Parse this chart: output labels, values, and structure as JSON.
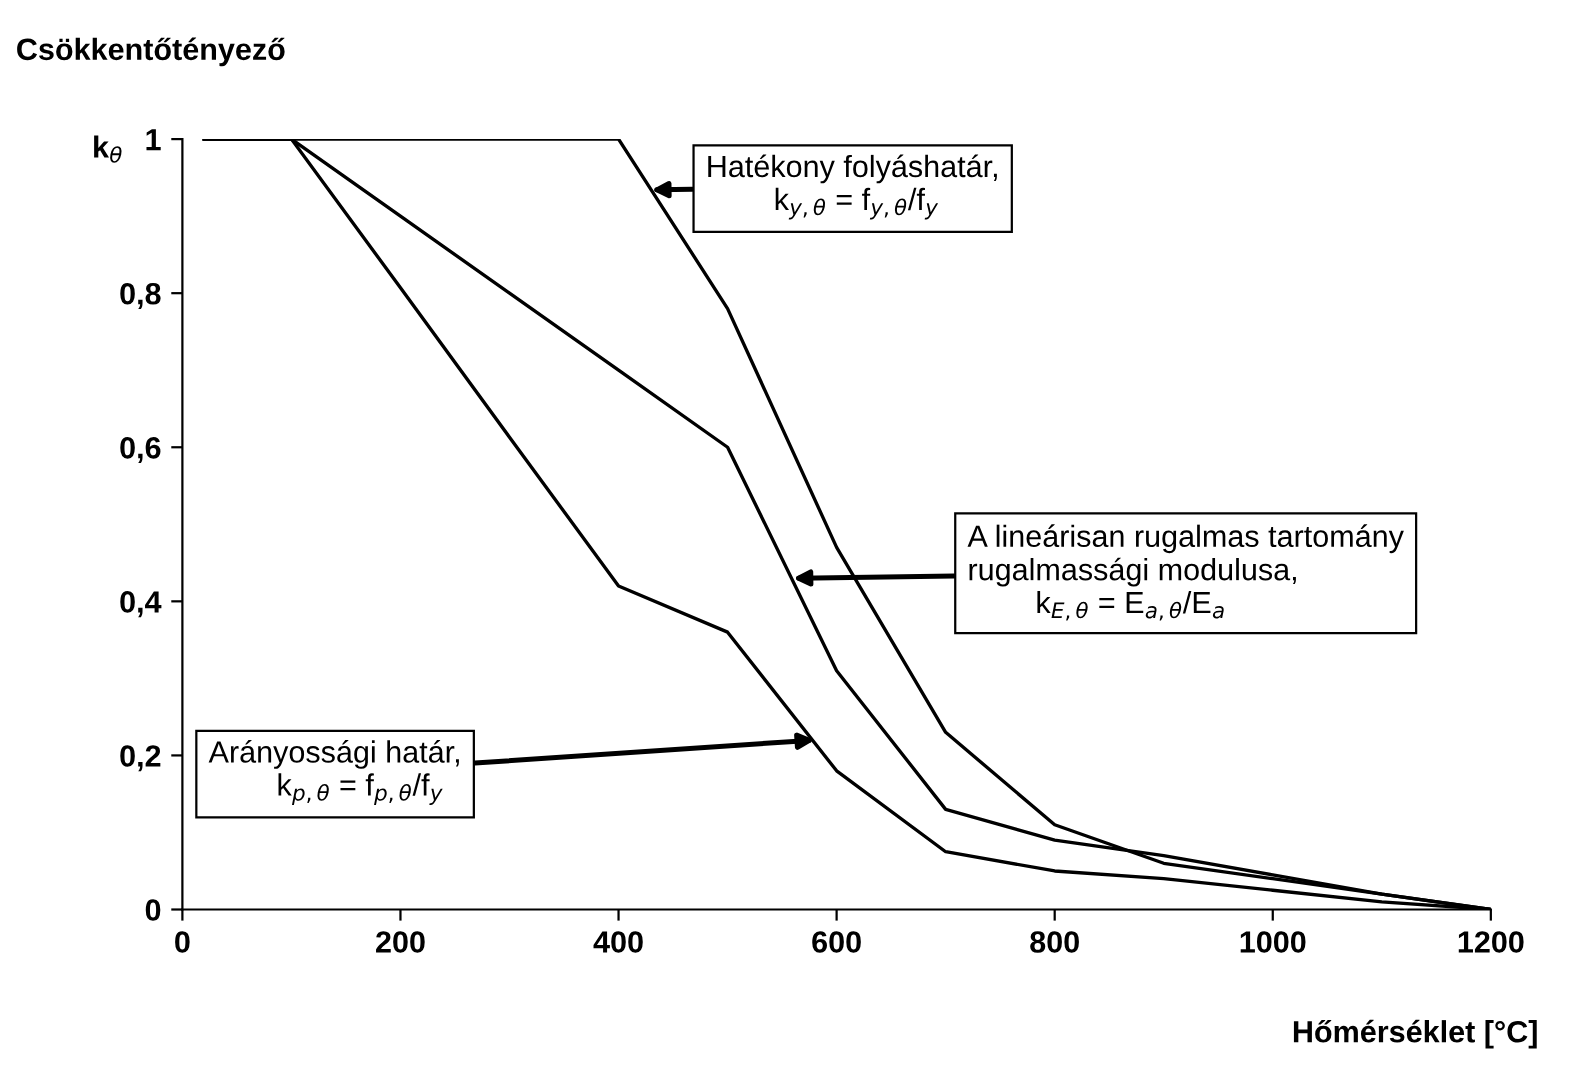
{
  "chart_data": {
    "type": "line",
    "ylabel": "Csökkentőtényező",
    "xlabel": "Hőmérséklet [°C]",
    "xlim": [
      0,
      1200
    ],
    "ylim": [
      0,
      1
    ],
    "xticks": [
      0,
      200,
      400,
      600,
      800,
      1000,
      1200
    ],
    "yticks": [
      {
        "value": 0,
        "label": "0"
      },
      {
        "value": 0.2,
        "label": "0,2"
      },
      {
        "value": 0.4,
        "label": "0,4"
      },
      {
        "value": 0.6,
        "label": "0,6"
      },
      {
        "value": 0.8,
        "label": "0,8"
      },
      {
        "value": 1,
        "label": "1"
      }
    ],
    "x": [
      20,
      100,
      200,
      300,
      400,
      500,
      600,
      700,
      800,
      900,
      1000,
      1100,
      1200
    ],
    "series": [
      {
        "color": "#000000",
        "values": [
          1,
          1,
          1,
          1,
          1,
          0.78,
          0.47,
          0.23,
          0.11,
          0.06,
          0.04,
          0.02,
          0
        ]
      },
      {
        "color": "#000000",
        "values": [
          1,
          1,
          0.9,
          0.8,
          0.7,
          0.6,
          0.31,
          0.13,
          0.09,
          0.07,
          0.045,
          0.02,
          0
        ]
      },
      {
        "color": "#000000",
        "values": [
          1,
          1,
          0.807,
          0.613,
          0.42,
          0.36,
          0.18,
          0.075,
          0.05,
          0.04,
          0.025,
          0.01,
          0
        ]
      }
    ],
    "annotations": [
      "k$_{θ}$",
      {
        "text": "Hatékony folyáshatár,\n        k$_{y,θ}$ = f$_{y,θ}$/f$_{y}$",
        "x": 430,
        "y": 0.934
      },
      {
        "text": "A lineárisan rugalmas tartomány\nrugalmassági modulusa,\n        k$_{E,θ}$ = E$_{a,θ}$/E$_{a}$",
        "x": 560,
        "y": 0.43
      },
      {
        "text": "Arányossági határ,\n        k$_{p,θ}$ = f$_{p,θ}$/f$_{y}$",
        "x": 580,
        "y": 0.22
      }
    ],
    "grid": false,
    "legend": false,
    "marker": "none",
    "line_style": "solid"
  }
}
